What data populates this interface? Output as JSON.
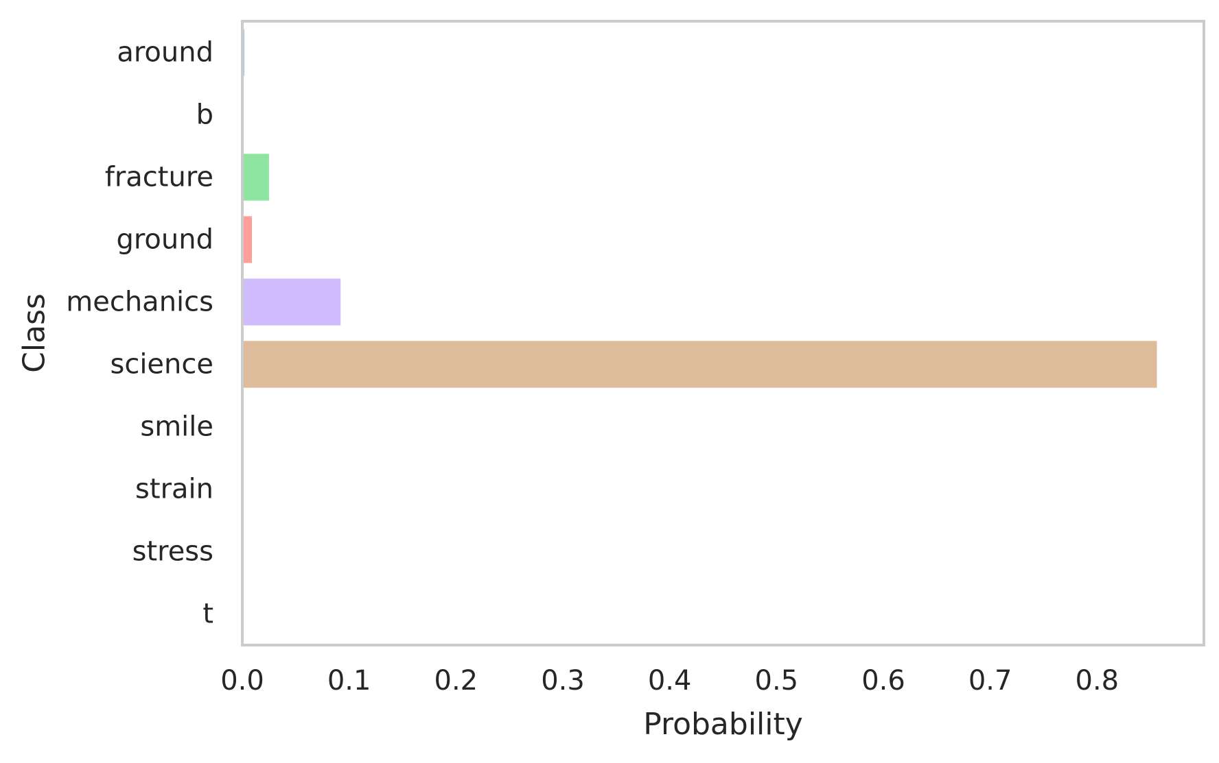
{
  "chart_data": {
    "type": "bar",
    "orientation": "horizontal",
    "title": "",
    "xlabel": "Probability",
    "ylabel": "Class",
    "categories": [
      "around",
      "b",
      "fracture",
      "ground",
      "mechanics",
      "science",
      "smile",
      "strain",
      "stress",
      "t"
    ],
    "values": [
      0.002,
      0.0,
      0.025,
      0.009,
      0.092,
      0.856,
      0.0,
      0.0,
      0.0,
      0.0
    ],
    "colors": [
      "#a1c9f4",
      "#ffb482",
      "#8de5a1",
      "#ff9f9b",
      "#d0bbff",
      "#debb9b",
      "#fab0e4",
      "#cfcfcf",
      "#fffea3",
      "#b9f2f0"
    ],
    "xlim": [
      0,
      0.9
    ],
    "xticks": [
      0.0,
      0.1,
      0.2,
      0.3,
      0.4,
      0.5,
      0.6,
      0.7,
      0.8
    ],
    "xtick_labels": [
      "0.0",
      "0.1",
      "0.2",
      "0.3",
      "0.4",
      "0.5",
      "0.6",
      "0.7",
      "0.8"
    ],
    "grid": false,
    "legend": "none",
    "frame_color": "#cccccc"
  }
}
